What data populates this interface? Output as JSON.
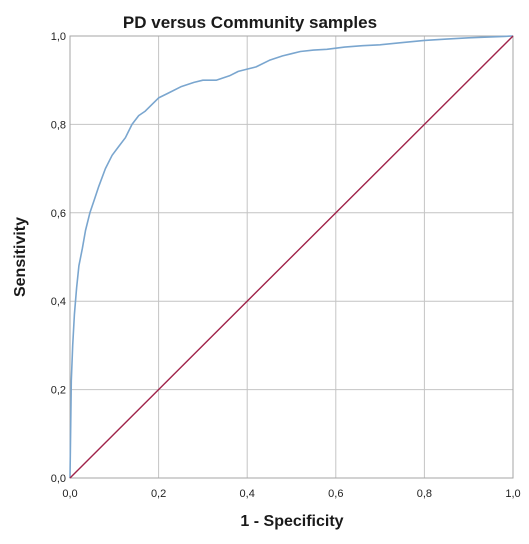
{
  "chart_data": {
    "type": "line",
    "title": "PD versus Community samples",
    "xlabel": "1 - Specificity",
    "ylabel": "Sensitivity",
    "xlim": [
      0.0,
      1.0
    ],
    "ylim": [
      0.0,
      1.0
    ],
    "x_ticks": [
      "0,0",
      "0,2",
      "0,4",
      "0,6",
      "0,8",
      "1,0"
    ],
    "y_ticks": [
      "0,0",
      "0,2",
      "0,4",
      "0,6",
      "0,8",
      "1,0"
    ],
    "grid": true,
    "legend": "none",
    "series": [
      {
        "color": "#7aa6cf",
        "x": [
          0.0,
          0.003,
          0.006,
          0.01,
          0.015,
          0.02,
          0.028,
          0.035,
          0.045,
          0.055,
          0.065,
          0.08,
          0.095,
          0.11,
          0.125,
          0.14,
          0.155,
          0.17,
          0.18,
          0.2,
          0.22,
          0.25,
          0.28,
          0.3,
          0.33,
          0.36,
          0.38,
          0.4,
          0.42,
          0.45,
          0.48,
          0.5,
          0.52,
          0.55,
          0.58,
          0.62,
          0.66,
          0.7,
          0.75,
          0.8,
          0.85,
          0.9,
          0.95,
          0.98,
          1.0
        ],
        "y": [
          0.0,
          0.22,
          0.3,
          0.37,
          0.43,
          0.48,
          0.52,
          0.56,
          0.6,
          0.63,
          0.66,
          0.7,
          0.73,
          0.75,
          0.77,
          0.8,
          0.82,
          0.83,
          0.84,
          0.86,
          0.87,
          0.885,
          0.895,
          0.9,
          0.9,
          0.91,
          0.92,
          0.925,
          0.93,
          0.945,
          0.955,
          0.96,
          0.965,
          0.968,
          0.97,
          0.975,
          0.978,
          0.98,
          0.985,
          0.99,
          0.993,
          0.996,
          0.998,
          0.999,
          1.0
        ]
      },
      {
        "color": "#a0234a",
        "x": [
          0.0,
          1.0
        ],
        "y": [
          0.0,
          1.0
        ]
      }
    ]
  }
}
